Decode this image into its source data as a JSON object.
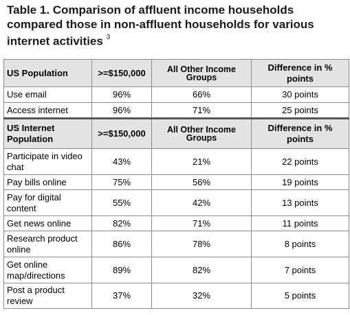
{
  "title": {
    "line1": "Table 1. Comparison of affluent income households",
    "line2": "compared those in non-affluent households for various",
    "line3": "internet activities",
    "footnote": "3"
  },
  "section1": {
    "headers": [
      "US Population",
      ">=$150,000",
      "All Other Income Groups",
      "Difference in % points"
    ],
    "rows": [
      [
        "Use email",
        "96%",
        "66%",
        "30 points"
      ],
      [
        "Access internet",
        "96%",
        "71%",
        "25 points"
      ]
    ]
  },
  "section2": {
    "headers": [
      "US Internet Population",
      ">=$150,000",
      "All Other Income Groups",
      "Difference in % points"
    ],
    "rows": [
      [
        "Participate in video chat",
        "43%",
        "21%",
        "22 points"
      ],
      [
        "Pay bills online",
        "75%",
        "56%",
        "19 points"
      ],
      [
        "Pay for digital content",
        "55%",
        "42%",
        "13 points"
      ],
      [
        "Get news online",
        "82%",
        "71%",
        "11 points"
      ],
      [
        "Research product online",
        "86%",
        "78%",
        "8 points"
      ],
      [
        "Get online map/directions",
        "89%",
        "82%",
        "7 points"
      ],
      [
        "Post a product review",
        "37%",
        "32%",
        "5 points"
      ]
    ]
  }
}
